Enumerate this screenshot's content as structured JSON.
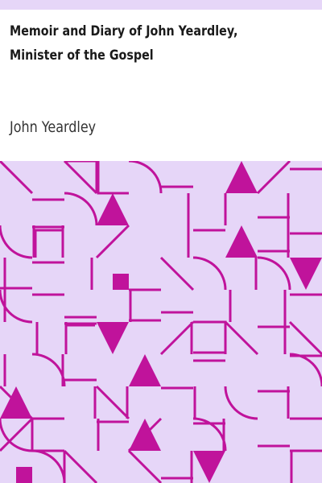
{
  "book": {
    "title": "Memoir and Diary of John Yeardley,\nMinister of the Gospel",
    "author": "John Yeardley"
  },
  "colors": {
    "band": "#e6d6f8",
    "pattern_background": "#e6d6f8",
    "pattern_ink": "#c0139b",
    "title_text": "#1a1a1a",
    "author_text": "#333333"
  }
}
